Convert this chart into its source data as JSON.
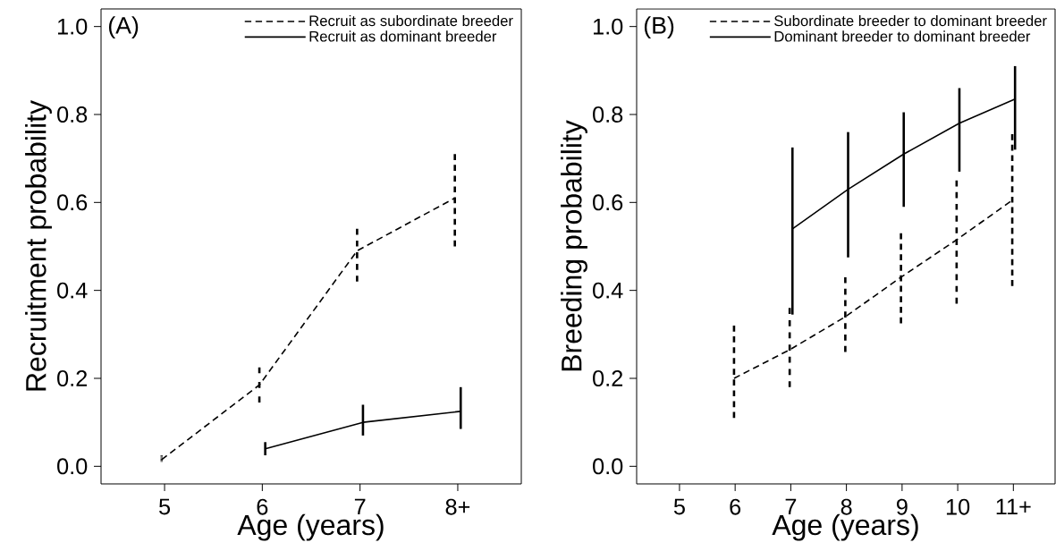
{
  "chart_data": [
    {
      "type": "line",
      "xlabel": "Age (years)",
      "ylabel": "Recruitment probability",
      "annotations": [
        "(A)"
      ],
      "xlim": [
        4.35,
        8.65
      ],
      "ylim": [
        -0.04,
        1.04
      ],
      "xticks": [
        5,
        6,
        7,
        {
          "value": 8,
          "label": "8+"
        }
      ],
      "yticks": [
        {
          "value": 0,
          "label": "0.0"
        },
        {
          "value": 0.2,
          "label": "0.2"
        },
        {
          "value": 0.4,
          "label": "0.4"
        },
        {
          "value": 0.6,
          "label": "0.6"
        },
        {
          "value": 0.8,
          "label": "0.8"
        },
        {
          "value": 1,
          "label": "1.0"
        }
      ],
      "legend": "top right",
      "series": [
        {
          "name": "Recruit as subordinate breeder",
          "color": "#000000",
          "line_style": "dashed",
          "x": [
            4.97,
            5.97,
            6.97,
            7.97
          ],
          "values": [
            0.015,
            0.185,
            0.49,
            0.61
          ],
          "errors": [
            [
              0.01,
              0.025
            ],
            [
              0.145,
              0.225
            ],
            [
              0.42,
              0.54
            ],
            [
              0.5,
              0.71
            ]
          ]
        },
        {
          "name": "Recruit as dominant breeder",
          "color": "#000000",
          "line_style": "solid",
          "x": [
            6.03,
            7.03,
            8.03
          ],
          "values": [
            0.04,
            0.1,
            0.125
          ],
          "errors": [
            [
              0.025,
              0.055
            ],
            [
              0.07,
              0.14
            ],
            [
              0.085,
              0.18
            ]
          ]
        }
      ]
    },
    {
      "type": "line",
      "xlabel": "Age (years)",
      "ylabel": "Breeding probability",
      "annotations": [
        "(B)"
      ],
      "xlim": [
        4.23,
        11.75
      ],
      "ylim": [
        -0.04,
        1.04
      ],
      "xticks": [
        5,
        6,
        7,
        8,
        9,
        10,
        {
          "value": 11,
          "label": "11+"
        }
      ],
      "yticks": [
        {
          "value": 0,
          "label": "0.0"
        },
        {
          "value": 0.2,
          "label": "0.2"
        },
        {
          "value": 0.4,
          "label": "0.4"
        },
        {
          "value": 0.6,
          "label": "0.6"
        },
        {
          "value": 0.8,
          "label": "0.8"
        },
        {
          "value": 1,
          "label": "1.0"
        }
      ],
      "legend": "top right",
      "series": [
        {
          "name": "Subordinate breeder to dominant breeder",
          "color": "#000000",
          "line_style": "dashed",
          "x": [
            5.98,
            6.98,
            7.98,
            8.98,
            9.98,
            10.98
          ],
          "values": [
            0.2,
            0.265,
            0.34,
            0.43,
            0.515,
            0.605
          ],
          "errors": [
            [
              0.11,
              0.32
            ],
            [
              0.18,
              0.36
            ],
            [
              0.26,
              0.43
            ],
            [
              0.325,
              0.53
            ],
            [
              0.37,
              0.65
            ],
            [
              0.41,
              0.755
            ]
          ]
        },
        {
          "name": "Dominant breeder to dominant breeder",
          "color": "#000000",
          "line_style": "solid",
          "x": [
            7.03,
            8.03,
            9.03,
            10.03,
            11.03
          ],
          "values": [
            0.54,
            0.63,
            0.71,
            0.78,
            0.835
          ],
          "errors": [
            [
              0.345,
              0.725
            ],
            [
              0.475,
              0.76
            ],
            [
              0.59,
              0.805
            ],
            [
              0.67,
              0.86
            ],
            [
              0.72,
              0.91
            ]
          ]
        }
      ]
    }
  ]
}
